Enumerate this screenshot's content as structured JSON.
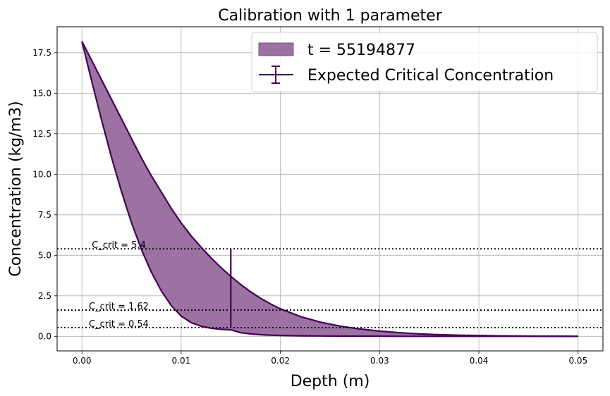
{
  "chart_data": {
    "type": "area",
    "title": "Calibration with 1 parameter",
    "xlabel": "Depth (m)",
    "ylabel": "Concentration (kg/m3)",
    "xlim": [
      -0.0025,
      0.0525
    ],
    "ylim": [
      -0.9,
      19.1
    ],
    "grid": true,
    "x_ticks": [
      0.0,
      0.01,
      0.02,
      0.03,
      0.04,
      0.05
    ],
    "x_tick_labels": [
      "0.00",
      "0.01",
      "0.02",
      "0.03",
      "0.04",
      "0.05"
    ],
    "y_ticks": [
      0.0,
      2.5,
      5.0,
      7.5,
      10.0,
      12.5,
      15.0,
      17.5
    ],
    "y_tick_labels": [
      "0.0",
      "2.5",
      "5.0",
      "7.5",
      "10.0",
      "12.5",
      "15.0",
      "17.5"
    ],
    "legend_position": "top-right",
    "series": [
      {
        "name": "t = 55194877",
        "kind": "band",
        "color": "#9b72a1",
        "edge_color": "#440154",
        "x": [
          0,
          0.001,
          0.002,
          0.003,
          0.004,
          0.005,
          0.006,
          0.007,
          0.008,
          0.009,
          0.01,
          0.011,
          0.012,
          0.013,
          0.014,
          0.015,
          0.016,
          0.017,
          0.018,
          0.019,
          0.02,
          0.022,
          0.024,
          0.026,
          0.028,
          0.03,
          0.032,
          0.034,
          0.036,
          0.038,
          0.04,
          0.042,
          0.044,
          0.046,
          0.048,
          0.05
        ],
        "lower": [
          18.2,
          15.7,
          13.3,
          11.0,
          8.9,
          7.0,
          5.35,
          3.95,
          2.8,
          1.9,
          1.25,
          0.85,
          0.62,
          0.5,
          0.43,
          0.4,
          0.22,
          0.15,
          0.1,
          0.07,
          0.05,
          0.03,
          0.02,
          0.01,
          0.01,
          0.01,
          0.0,
          0.0,
          0.0,
          0.0,
          0.0,
          0.0,
          0.0,
          0.0,
          0.0,
          0.0
        ],
        "upper": [
          18.2,
          17.0,
          15.8,
          14.6,
          13.4,
          12.2,
          11.0,
          9.9,
          8.9,
          7.9,
          7.0,
          6.2,
          5.5,
          4.85,
          4.25,
          3.7,
          3.2,
          2.75,
          2.35,
          2.0,
          1.7,
          1.22,
          0.88,
          0.63,
          0.45,
          0.32,
          0.22,
          0.15,
          0.1,
          0.07,
          0.05,
          0.03,
          0.02,
          0.01,
          0.01,
          0.0
        ]
      },
      {
        "name": "Expected Critical Concentration",
        "kind": "errorbar",
        "color": "#440154",
        "x": 0.015,
        "y_low": 0.54,
        "y_high": 5.4
      }
    ],
    "reference_lines": [
      {
        "y": 5.4,
        "label": "C_crit = 5.4",
        "label_x": 0.001
      },
      {
        "y": 1.62,
        "label": "C_crit = 1.62",
        "label_x": 0.0007
      },
      {
        "y": 0.54,
        "label": "C_crit = 0.54",
        "label_x": 0.0007
      }
    ]
  }
}
